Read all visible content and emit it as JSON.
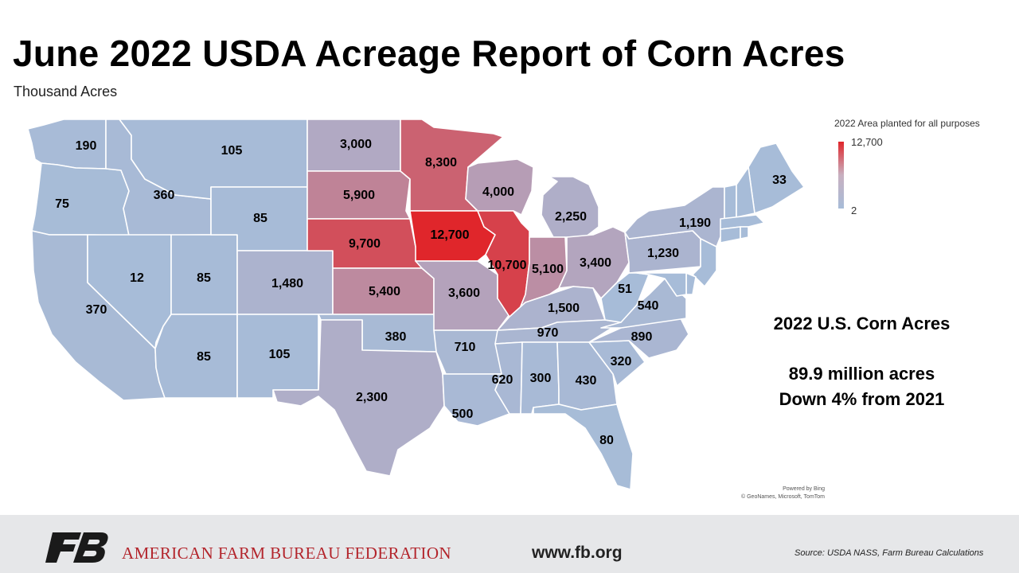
{
  "header": {
    "title": "June 2022 USDA Acreage Report of Corn Acres",
    "subtitle": "Thousand Acres"
  },
  "legend": {
    "title": "2022 Area planted for all purposes",
    "max": "12,700",
    "min": "2",
    "colors": {
      "high": "#e0262b",
      "mid": "#b0a8c2",
      "low": "#a7bcd8"
    }
  },
  "summary": {
    "heading": "2022 U.S. Corn Acres",
    "line1": "89.9 million acres",
    "line2": "Down 4% from 2021"
  },
  "attribution": {
    "line1": "Powered by Bing",
    "line2": "© GeoNames, Microsoft, TomTom"
  },
  "footer": {
    "org": "AMERICAN FARM BUREAU FEDERATION",
    "url": "www.fb.org",
    "source": "Source: USDA NASS, Farm Bureau Calculations"
  },
  "chart_data": {
    "type": "choropleth",
    "title": "June 2022 USDA Acreage Report of Corn Acres",
    "units": "Thousand Acres",
    "color_scale": [
      2,
      12700
    ],
    "states": [
      {
        "id": "WA",
        "label": "190",
        "value": 190
      },
      {
        "id": "OR",
        "label": "75",
        "value": 75
      },
      {
        "id": "CA",
        "label": "370",
        "value": 370
      },
      {
        "id": "ID",
        "label": "360",
        "value": 360
      },
      {
        "id": "NV",
        "label": "12",
        "value": 12
      },
      {
        "id": "UT",
        "label": "85",
        "value": 85
      },
      {
        "id": "AZ",
        "label": "85",
        "value": 85
      },
      {
        "id": "MT",
        "label": "105",
        "value": 105
      },
      {
        "id": "WY",
        "label": "85",
        "value": 85
      },
      {
        "id": "CO",
        "label": "1,480",
        "value": 1480
      },
      {
        "id": "NM",
        "label": "105",
        "value": 105
      },
      {
        "id": "ND",
        "label": "3,000",
        "value": 3000
      },
      {
        "id": "SD",
        "label": "5,900",
        "value": 5900
      },
      {
        "id": "NE",
        "label": "9,700",
        "value": 9700
      },
      {
        "id": "KS",
        "label": "5,400",
        "value": 5400
      },
      {
        "id": "OK",
        "label": "380",
        "value": 380
      },
      {
        "id": "TX",
        "label": "2,300",
        "value": 2300
      },
      {
        "id": "MN",
        "label": "8,300",
        "value": 8300
      },
      {
        "id": "IA",
        "label": "12,700",
        "value": 12700
      },
      {
        "id": "MO",
        "label": "3,600",
        "value": 3600
      },
      {
        "id": "AR",
        "label": "710",
        "value": 710
      },
      {
        "id": "LA",
        "label": "500",
        "value": 500
      },
      {
        "id": "WI",
        "label": "4,000",
        "value": 4000
      },
      {
        "id": "IL",
        "label": "10,700",
        "value": 10700
      },
      {
        "id": "MI",
        "label": "2,250",
        "value": 2250
      },
      {
        "id": "IN",
        "label": "5,100",
        "value": 5100
      },
      {
        "id": "OH",
        "label": "3,400",
        "value": 3400
      },
      {
        "id": "KY",
        "label": "1,500",
        "value": 1500
      },
      {
        "id": "TN",
        "label": "970",
        "value": 970
      },
      {
        "id": "MS",
        "label": "620",
        "value": 620
      },
      {
        "id": "AL",
        "label": "300",
        "value": 300
      },
      {
        "id": "GA",
        "label": "430",
        "value": 430
      },
      {
        "id": "FL",
        "label": "80",
        "value": 80
      },
      {
        "id": "SC",
        "label": "320",
        "value": 320
      },
      {
        "id": "NC",
        "label": "890",
        "value": 890
      },
      {
        "id": "VA",
        "label": "540",
        "value": 540
      },
      {
        "id": "WV",
        "label": "51",
        "value": 51
      },
      {
        "id": "PA",
        "label": "1,230",
        "value": 1230
      },
      {
        "id": "NY",
        "label": "1,190",
        "value": 1190
      },
      {
        "id": "ME",
        "label": "33",
        "value": 33
      },
      {
        "id": "VT",
        "label": "",
        "value": null
      },
      {
        "id": "NH",
        "label": "",
        "value": null
      },
      {
        "id": "MA",
        "label": "",
        "value": null
      },
      {
        "id": "CT",
        "label": "",
        "value": null
      },
      {
        "id": "RI",
        "label": "",
        "value": null
      },
      {
        "id": "NJ",
        "label": "",
        "value": null
      },
      {
        "id": "DE",
        "label": "",
        "value": null
      },
      {
        "id": "MD",
        "label": "",
        "value": null
      }
    ]
  }
}
